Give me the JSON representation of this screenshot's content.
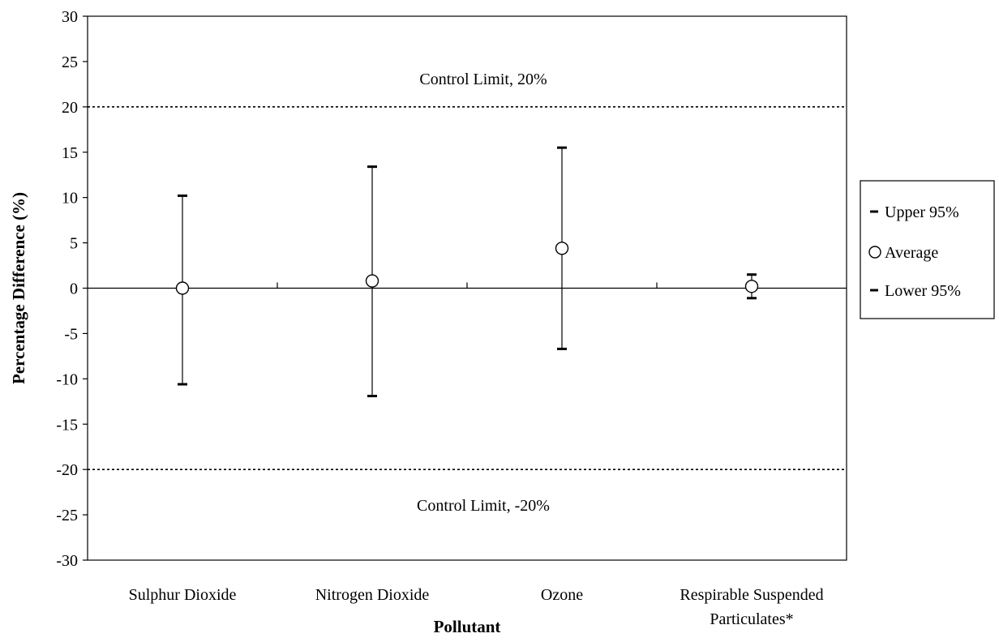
{
  "chart_data": {
    "type": "scatter",
    "xlabel": "Pollutant",
    "ylabel": "Percentage Difference   (%)",
    "ylim": [
      -30,
      30
    ],
    "yticks": [
      "30",
      "25",
      "20",
      "15",
      "10",
      "5",
      "0",
      "-5",
      "-10",
      "-15",
      "-20",
      "-25",
      "-30"
    ],
    "categories": [
      [
        "Sulphur Dioxide"
      ],
      [
        "Nitrogen Dioxide"
      ],
      [
        "Ozone"
      ],
      [
        "Respirable Suspended",
        "Particulates*"
      ]
    ],
    "series": [
      {
        "name": "Upper 95%",
        "values": [
          10.2,
          13.4,
          15.5,
          1.5
        ]
      },
      {
        "name": "Average",
        "values": [
          0.0,
          0.8,
          4.4,
          0.2
        ]
      },
      {
        "name": "Lower 95%",
        "values": [
          -10.6,
          -11.9,
          -6.7,
          -1.1
        ]
      }
    ],
    "control_limits": [
      {
        "value": 20,
        "label": "Control Limit, 20%"
      },
      {
        "value": -20,
        "label": "Control Limit, -20%"
      }
    ],
    "legend_position": "right",
    "grid": false
  }
}
